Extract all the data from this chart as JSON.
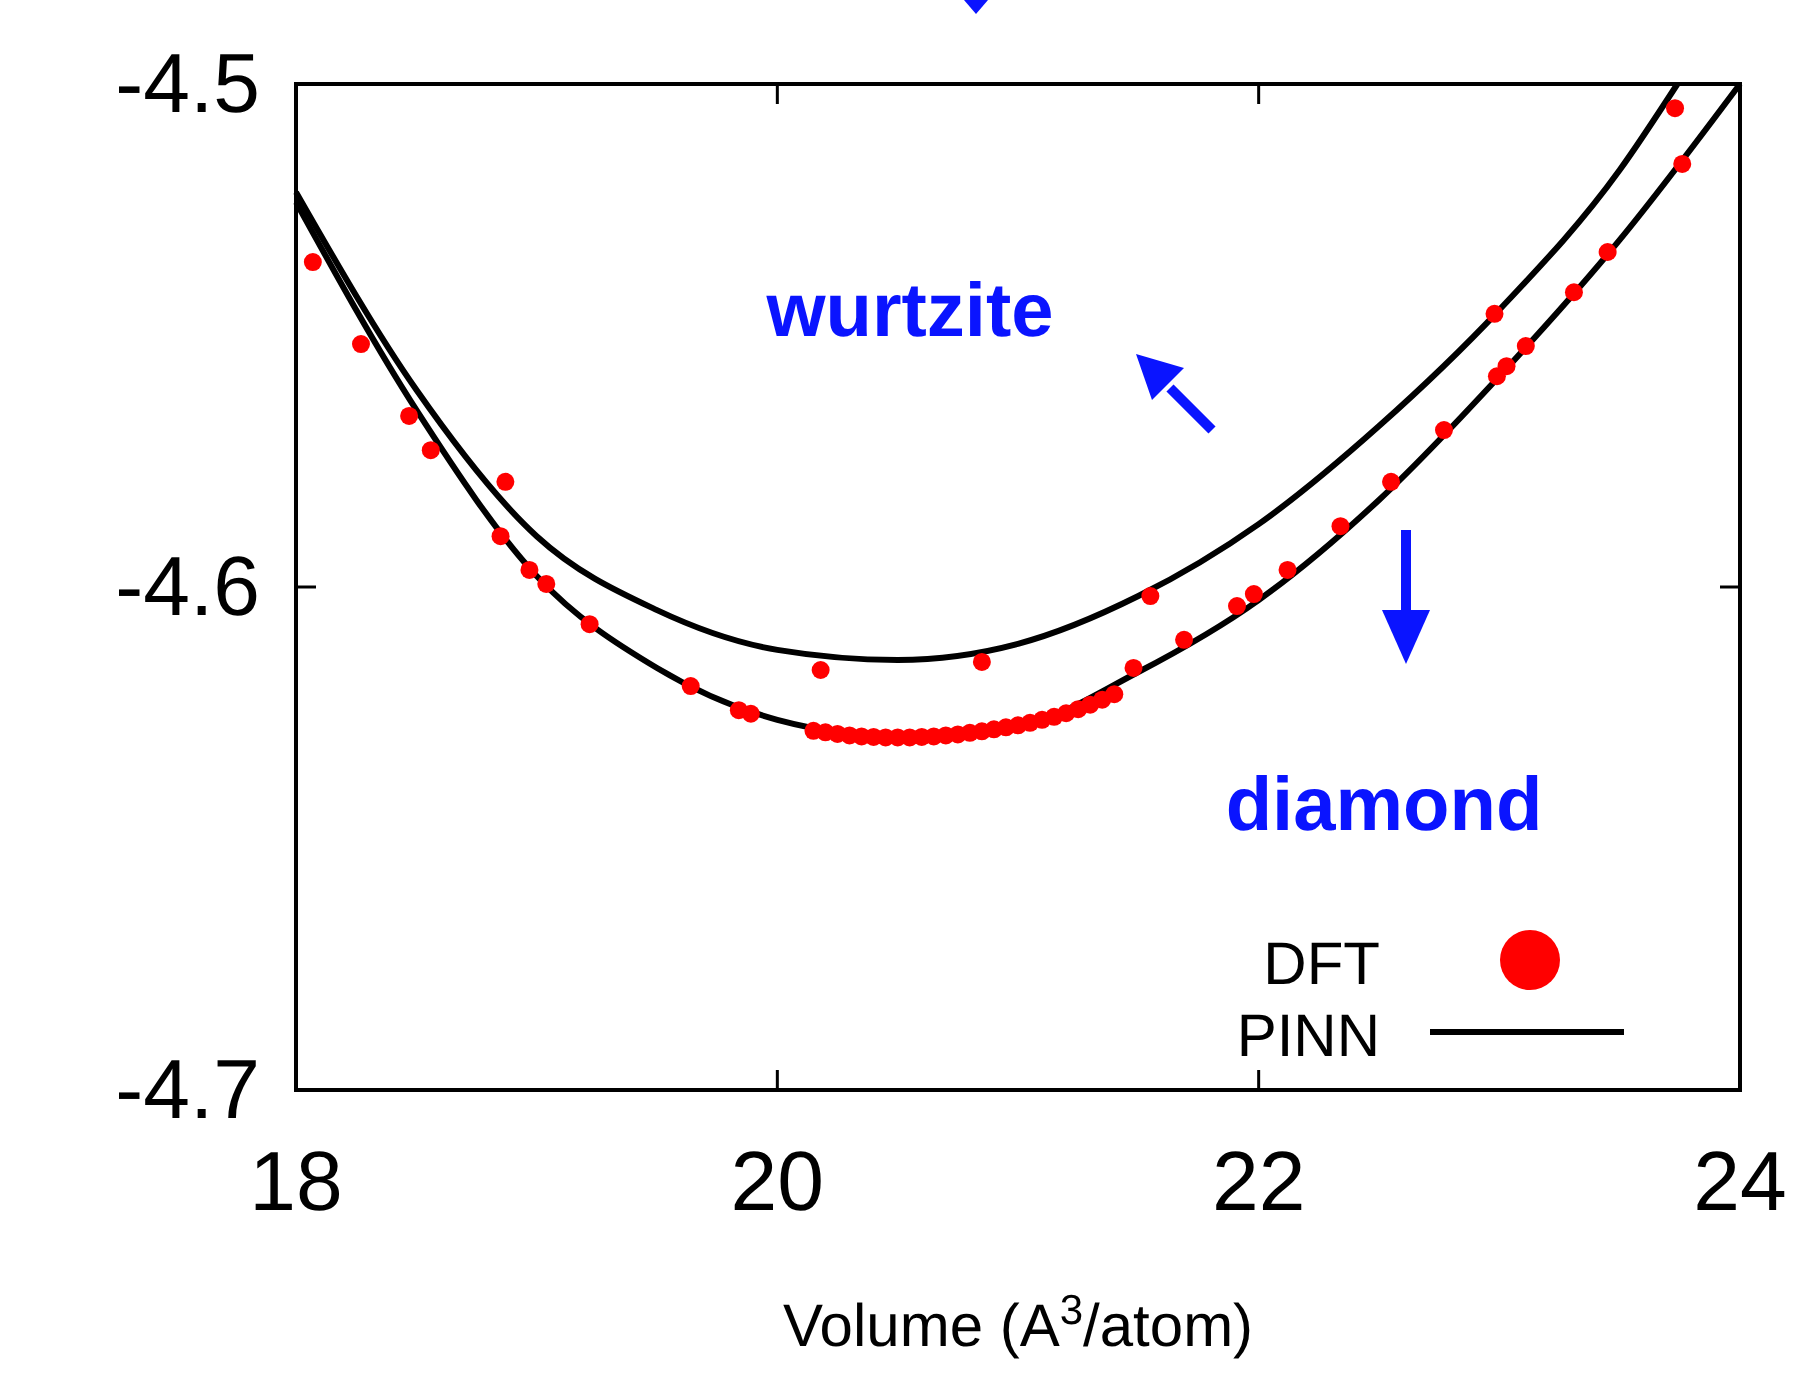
{
  "chart_data": {
    "type": "scatter",
    "xlabel": "Volume (A$^{3}$/atom)",
    "xlim": [
      18,
      24
    ],
    "ylim": [
      -4.7,
      -4.5
    ],
    "xticks": [
      18,
      20,
      22,
      24
    ],
    "yticks": [
      -4.7,
      -4.6,
      -4.5
    ],
    "grid": false,
    "legend": "bottom right",
    "annotations": [
      "wurtzite",
      "diamond"
    ],
    "series": [
      {
        "name": "DFT",
        "marker": "circle",
        "color": "#ff0000",
        "x": [
          18.07,
          18.27,
          18.47,
          18.56,
          18.87,
          18.85,
          18.97,
          19.04,
          19.22,
          19.64,
          19.84,
          19.89,
          20.18,
          20.85,
          20.15,
          20.2,
          20.25,
          20.3,
          20.35,
          20.4,
          20.45,
          20.5,
          20.55,
          20.6,
          20.65,
          20.7,
          20.75,
          20.8,
          20.85,
          20.9,
          20.95,
          21.0,
          21.05,
          21.1,
          21.15,
          21.2,
          21.25,
          21.3,
          21.35,
          21.4,
          21.55,
          21.48,
          21.69,
          21.91,
          21.98,
          22.12,
          22.34,
          22.55,
          22.77,
          22.98,
          22.99,
          23.03,
          23.11,
          23.31,
          23.45,
          23.73,
          23.76
        ],
        "values": [
          -4.5354,
          -4.5517,
          -4.566,
          -4.5728,
          -4.5791,
          -4.5899,
          -4.5966,
          -4.5994,
          -4.6074,
          -4.6197,
          -4.6245,
          -4.6252,
          -4.6165,
          -4.6149,
          -4.6286,
          -4.6289,
          -4.6292,
          -4.6295,
          -4.6297,
          -4.6298,
          -4.6299,
          -4.6299,
          -4.6299,
          -4.6298,
          -4.6297,
          -4.6295,
          -4.6293,
          -4.629,
          -4.6287,
          -4.6283,
          -4.6279,
          -4.6275,
          -4.627,
          -4.6264,
          -4.6258,
          -4.6251,
          -4.6243,
          -4.6234,
          -4.6224,
          -4.6213,
          -4.6018,
          -4.6161,
          -4.6105,
          -4.6038,
          -4.6014,
          -4.5966,
          -4.5879,
          -4.5791,
          -4.5688,
          -4.5457,
          -4.5581,
          -4.5561,
          -4.5521,
          -4.5414,
          -4.5334,
          -4.5048,
          -4.5159
        ]
      },
      {
        "name": "PINN",
        "type": "line",
        "marker": "none",
        "line_style": "solid",
        "color": "#000000",
        "x": [
          18,
          18.5,
          19,
          19.5,
          20,
          20.5,
          21,
          21.5,
          22,
          22.5,
          23,
          23.5,
          23.74
        ],
        "values": [
          -4.5215,
          -4.5608,
          -4.5899,
          -4.6046,
          -4.6125,
          -4.6145,
          -4.6113,
          -4.6018,
          -4.5875,
          -4.568,
          -4.5449,
          -4.5171,
          -4.5
        ]
      },
      {
        "type": "line",
        "marker": "none",
        "line_style": "solid",
        "color": "#000000",
        "x": [
          18,
          18.5,
          19,
          19.5,
          20,
          20.5,
          21,
          21.5,
          22,
          22.5,
          23,
          23.5,
          24
        ],
        "values": [
          -4.5235,
          -4.5648,
          -4.5978,
          -4.6161,
          -4.6264,
          -4.6296,
          -4.6276,
          -4.6169,
          -4.6026,
          -4.5827,
          -4.5581,
          -4.531,
          -4.5
        ]
      }
    ]
  }
}
